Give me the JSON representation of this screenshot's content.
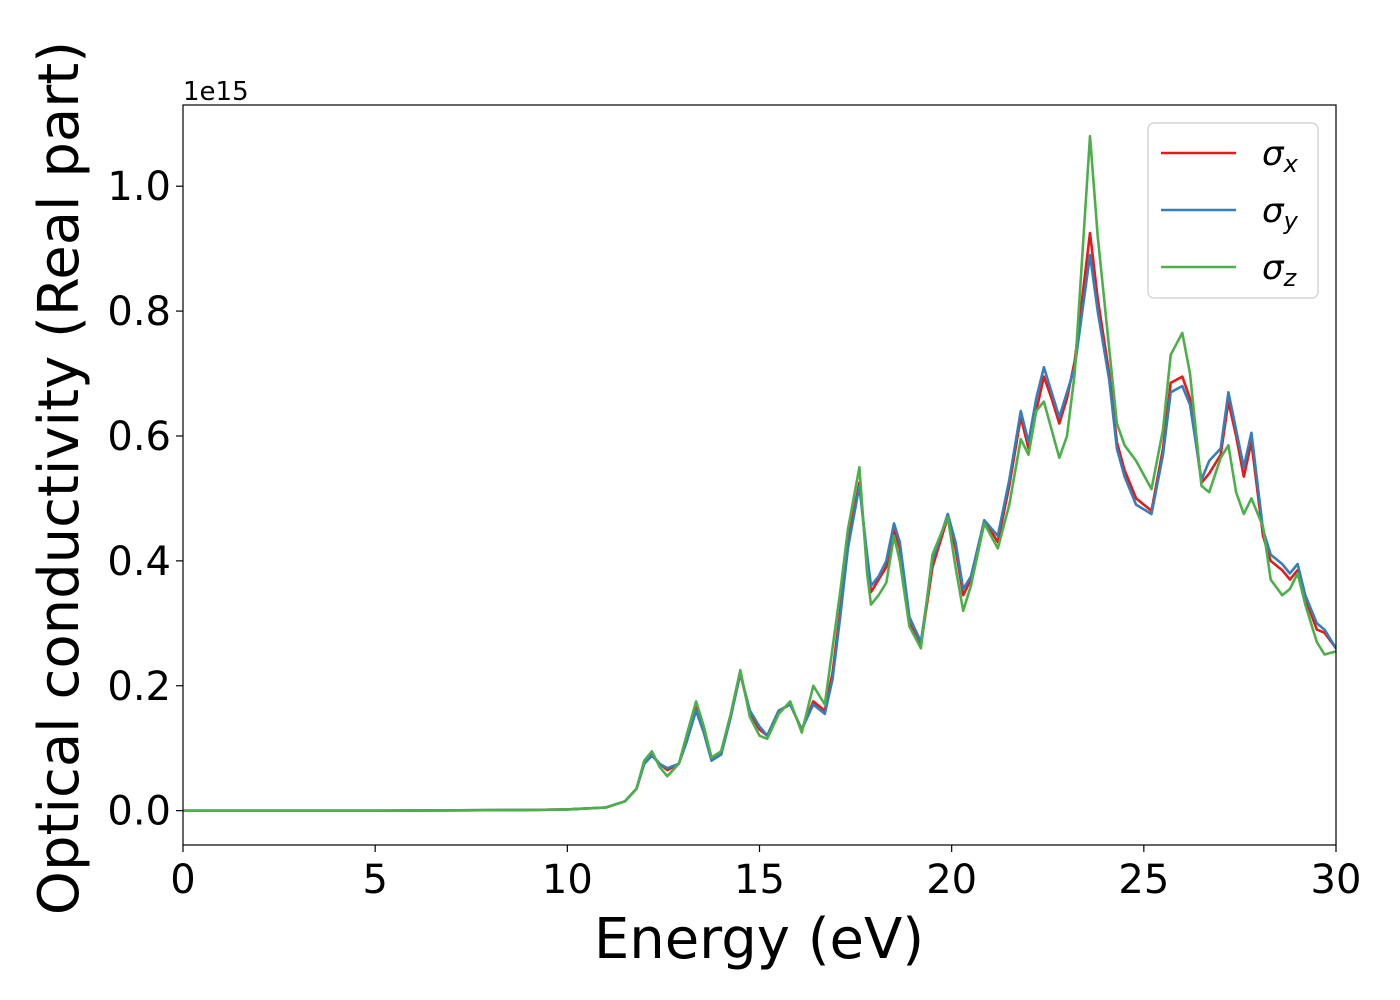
{
  "chart_data": {
    "type": "line",
    "xlabel": "Energy (eV)",
    "ylabel": "Optical conductivity (Real part)",
    "y_offset_text": "1e15",
    "xlim": [
      0,
      30
    ],
    "ylim": [
      -0.055,
      1.13
    ],
    "x_ticks": [
      0,
      5,
      10,
      15,
      20,
      25,
      30
    ],
    "x_tick_labels": [
      "0",
      "5",
      "10",
      "15",
      "20",
      "25",
      "30"
    ],
    "y_ticks": [
      0.0,
      0.2,
      0.4,
      0.6,
      0.8,
      1.0
    ],
    "y_tick_labels": [
      "0.0",
      "0.2",
      "0.4",
      "0.6",
      "0.8",
      "1.0"
    ],
    "grid": false,
    "legend_position": "top-right",
    "series": [
      {
        "name": "σx",
        "symbol": "σ",
        "subscript": "x",
        "color": "#e41a1c",
        "points": [
          [
            0,
            0
          ],
          [
            5,
            0
          ],
          [
            9,
            0.001
          ],
          [
            10,
            0.002
          ],
          [
            11,
            0.005
          ],
          [
            11.5,
            0.015
          ],
          [
            11.8,
            0.035
          ],
          [
            12.0,
            0.075
          ],
          [
            12.2,
            0.09
          ],
          [
            12.4,
            0.075
          ],
          [
            12.6,
            0.065
          ],
          [
            12.9,
            0.075
          ],
          [
            13.1,
            0.11
          ],
          [
            13.35,
            0.165
          ],
          [
            13.55,
            0.13
          ],
          [
            13.75,
            0.085
          ],
          [
            14.0,
            0.09
          ],
          [
            14.25,
            0.15
          ],
          [
            14.5,
            0.22
          ],
          [
            14.75,
            0.155
          ],
          [
            15.0,
            0.13
          ],
          [
            15.2,
            0.12
          ],
          [
            15.5,
            0.16
          ],
          [
            15.8,
            0.17
          ],
          [
            16.1,
            0.13
          ],
          [
            16.4,
            0.175
          ],
          [
            16.7,
            0.16
          ],
          [
            16.9,
            0.22
          ],
          [
            17.1,
            0.32
          ],
          [
            17.3,
            0.43
          ],
          [
            17.6,
            0.525
          ],
          [
            17.8,
            0.4
          ],
          [
            17.9,
            0.35
          ],
          [
            18.1,
            0.37
          ],
          [
            18.3,
            0.39
          ],
          [
            18.5,
            0.45
          ],
          [
            18.65,
            0.42
          ],
          [
            18.9,
            0.3
          ],
          [
            19.2,
            0.265
          ],
          [
            19.5,
            0.39
          ],
          [
            19.9,
            0.47
          ],
          [
            20.1,
            0.42
          ],
          [
            20.3,
            0.345
          ],
          [
            20.5,
            0.37
          ],
          [
            20.85,
            0.465
          ],
          [
            21.2,
            0.43
          ],
          [
            21.5,
            0.52
          ],
          [
            21.8,
            0.63
          ],
          [
            22.0,
            0.58
          ],
          [
            22.2,
            0.64
          ],
          [
            22.4,
            0.695
          ],
          [
            22.6,
            0.66
          ],
          [
            22.8,
            0.62
          ],
          [
            23.0,
            0.66
          ],
          [
            23.2,
            0.72
          ],
          [
            23.6,
            0.925
          ],
          [
            23.8,
            0.82
          ],
          [
            24.1,
            0.7
          ],
          [
            24.3,
            0.59
          ],
          [
            24.5,
            0.545
          ],
          [
            24.8,
            0.5
          ],
          [
            25.2,
            0.48
          ],
          [
            25.5,
            0.58
          ],
          [
            25.7,
            0.685
          ],
          [
            26.0,
            0.695
          ],
          [
            26.2,
            0.66
          ],
          [
            26.5,
            0.525
          ],
          [
            26.7,
            0.54
          ],
          [
            27.0,
            0.57
          ],
          [
            27.2,
            0.655
          ],
          [
            27.4,
            0.6
          ],
          [
            27.6,
            0.535
          ],
          [
            27.8,
            0.59
          ],
          [
            28.1,
            0.44
          ],
          [
            28.3,
            0.4
          ],
          [
            28.6,
            0.385
          ],
          [
            28.8,
            0.37
          ],
          [
            29.0,
            0.385
          ],
          [
            29.2,
            0.34
          ],
          [
            29.5,
            0.29
          ],
          [
            29.7,
            0.285
          ],
          [
            30,
            0.26
          ]
        ]
      },
      {
        "name": "σy",
        "symbol": "σ",
        "subscript": "y",
        "color": "#377eb8",
        "points": [
          [
            0,
            0
          ],
          [
            5,
            0
          ],
          [
            9,
            0.001
          ],
          [
            10,
            0.002
          ],
          [
            11,
            0.005
          ],
          [
            11.5,
            0.015
          ],
          [
            11.8,
            0.035
          ],
          [
            12.0,
            0.075
          ],
          [
            12.2,
            0.088
          ],
          [
            12.4,
            0.075
          ],
          [
            12.6,
            0.068
          ],
          [
            12.9,
            0.075
          ],
          [
            13.1,
            0.11
          ],
          [
            13.35,
            0.16
          ],
          [
            13.55,
            0.125
          ],
          [
            13.75,
            0.08
          ],
          [
            14.0,
            0.09
          ],
          [
            14.25,
            0.15
          ],
          [
            14.5,
            0.22
          ],
          [
            14.75,
            0.16
          ],
          [
            15.0,
            0.135
          ],
          [
            15.2,
            0.12
          ],
          [
            15.5,
            0.16
          ],
          [
            15.8,
            0.17
          ],
          [
            16.1,
            0.13
          ],
          [
            16.4,
            0.17
          ],
          [
            16.7,
            0.155
          ],
          [
            16.9,
            0.21
          ],
          [
            17.1,
            0.31
          ],
          [
            17.3,
            0.42
          ],
          [
            17.6,
            0.52
          ],
          [
            17.8,
            0.41
          ],
          [
            17.9,
            0.36
          ],
          [
            18.1,
            0.375
          ],
          [
            18.3,
            0.4
          ],
          [
            18.5,
            0.46
          ],
          [
            18.65,
            0.43
          ],
          [
            18.9,
            0.31
          ],
          [
            19.2,
            0.27
          ],
          [
            19.5,
            0.4
          ],
          [
            19.9,
            0.475
          ],
          [
            20.1,
            0.43
          ],
          [
            20.3,
            0.355
          ],
          [
            20.5,
            0.375
          ],
          [
            20.85,
            0.465
          ],
          [
            21.2,
            0.44
          ],
          [
            21.5,
            0.53
          ],
          [
            21.8,
            0.64
          ],
          [
            22.0,
            0.59
          ],
          [
            22.2,
            0.66
          ],
          [
            22.4,
            0.71
          ],
          [
            22.6,
            0.67
          ],
          [
            22.8,
            0.63
          ],
          [
            23.0,
            0.67
          ],
          [
            23.2,
            0.71
          ],
          [
            23.6,
            0.89
          ],
          [
            23.8,
            0.8
          ],
          [
            24.1,
            0.69
          ],
          [
            24.3,
            0.58
          ],
          [
            24.5,
            0.535
          ],
          [
            24.8,
            0.49
          ],
          [
            25.2,
            0.475
          ],
          [
            25.5,
            0.57
          ],
          [
            25.7,
            0.67
          ],
          [
            26.0,
            0.68
          ],
          [
            26.2,
            0.65
          ],
          [
            26.5,
            0.53
          ],
          [
            26.7,
            0.56
          ],
          [
            27.0,
            0.58
          ],
          [
            27.2,
            0.67
          ],
          [
            27.4,
            0.61
          ],
          [
            27.6,
            0.55
          ],
          [
            27.8,
            0.605
          ],
          [
            28.1,
            0.45
          ],
          [
            28.3,
            0.41
          ],
          [
            28.6,
            0.395
          ],
          [
            28.8,
            0.38
          ],
          [
            29.0,
            0.395
          ],
          [
            29.2,
            0.345
          ],
          [
            29.5,
            0.3
          ],
          [
            29.7,
            0.29
          ],
          [
            30,
            0.26
          ]
        ]
      },
      {
        "name": "σz",
        "symbol": "σ",
        "subscript": "z",
        "color": "#4daf4a",
        "points": [
          [
            0,
            0
          ],
          [
            5,
            0
          ],
          [
            9,
            0.001
          ],
          [
            10,
            0.002
          ],
          [
            11,
            0.005
          ],
          [
            11.5,
            0.015
          ],
          [
            11.8,
            0.035
          ],
          [
            12.0,
            0.08
          ],
          [
            12.2,
            0.095
          ],
          [
            12.4,
            0.07
          ],
          [
            12.6,
            0.055
          ],
          [
            12.9,
            0.075
          ],
          [
            13.1,
            0.12
          ],
          [
            13.35,
            0.175
          ],
          [
            13.55,
            0.135
          ],
          [
            13.75,
            0.085
          ],
          [
            14.0,
            0.095
          ],
          [
            14.25,
            0.155
          ],
          [
            14.5,
            0.225
          ],
          [
            14.75,
            0.15
          ],
          [
            15.0,
            0.12
          ],
          [
            15.2,
            0.115
          ],
          [
            15.5,
            0.155
          ],
          [
            15.8,
            0.175
          ],
          [
            16.1,
            0.125
          ],
          [
            16.4,
            0.2
          ],
          [
            16.7,
            0.17
          ],
          [
            16.9,
            0.26
          ],
          [
            17.1,
            0.35
          ],
          [
            17.3,
            0.45
          ],
          [
            17.6,
            0.55
          ],
          [
            17.8,
            0.38
          ],
          [
            17.9,
            0.33
          ],
          [
            18.1,
            0.345
          ],
          [
            18.3,
            0.365
          ],
          [
            18.5,
            0.44
          ],
          [
            18.65,
            0.4
          ],
          [
            18.9,
            0.295
          ],
          [
            19.2,
            0.26
          ],
          [
            19.5,
            0.41
          ],
          [
            19.9,
            0.47
          ],
          [
            20.1,
            0.39
          ],
          [
            20.3,
            0.32
          ],
          [
            20.5,
            0.36
          ],
          [
            20.85,
            0.46
          ],
          [
            21.2,
            0.42
          ],
          [
            21.5,
            0.49
          ],
          [
            21.8,
            0.595
          ],
          [
            22.0,
            0.57
          ],
          [
            22.2,
            0.64
          ],
          [
            22.4,
            0.655
          ],
          [
            22.6,
            0.61
          ],
          [
            22.8,
            0.565
          ],
          [
            23.0,
            0.6
          ],
          [
            23.2,
            0.7
          ],
          [
            23.6,
            1.08
          ],
          [
            23.8,
            0.92
          ],
          [
            24.1,
            0.74
          ],
          [
            24.3,
            0.62
          ],
          [
            24.5,
            0.585
          ],
          [
            24.8,
            0.56
          ],
          [
            25.2,
            0.515
          ],
          [
            25.5,
            0.61
          ],
          [
            25.7,
            0.73
          ],
          [
            26.0,
            0.765
          ],
          [
            26.2,
            0.7
          ],
          [
            26.5,
            0.52
          ],
          [
            26.7,
            0.51
          ],
          [
            27.0,
            0.565
          ],
          [
            27.2,
            0.585
          ],
          [
            27.4,
            0.51
          ],
          [
            27.6,
            0.475
          ],
          [
            27.8,
            0.5
          ],
          [
            28.1,
            0.455
          ],
          [
            28.3,
            0.37
          ],
          [
            28.6,
            0.345
          ],
          [
            28.8,
            0.355
          ],
          [
            29.0,
            0.38
          ],
          [
            29.2,
            0.33
          ],
          [
            29.5,
            0.27
          ],
          [
            29.7,
            0.25
          ],
          [
            30,
            0.255
          ]
        ]
      }
    ]
  }
}
